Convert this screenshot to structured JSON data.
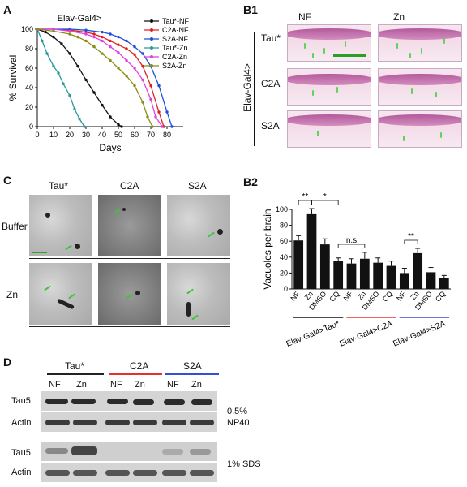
{
  "panelA": {
    "letter": "A",
    "title": "Elav-Gal4>",
    "legend": [
      {
        "label": "Tau*-NF",
        "color": "#111111",
        "marker": "square"
      },
      {
        "label": "C2A-NF",
        "color": "#e02020",
        "marker": "circle"
      },
      {
        "label": "S2A-NF",
        "color": "#1f4fd6",
        "marker": "triangle-up"
      },
      {
        "label": "Tau*-Zn",
        "color": "#2a9a9a",
        "marker": "triangle-down"
      },
      {
        "label": "C2A-Zn",
        "color": "#e040e0",
        "marker": "triangle-left"
      },
      {
        "label": "S2A-Zn",
        "color": "#8c8c1c",
        "marker": "triangle-right"
      }
    ]
  },
  "chart_data": [
    {
      "type": "line",
      "title": "Elav-Gal4>",
      "xlabel": "Days",
      "ylabel": "% Survival",
      "xlim": [
        0,
        90
      ],
      "ylim": [
        0,
        100
      ],
      "xticks": [
        "0",
        "10",
        "20",
        "30",
        "40",
        "50",
        "60",
        "70",
        "80"
      ],
      "yticks": [
        "0",
        "20",
        "40",
        "60",
        "80",
        "100"
      ],
      "series": [
        {
          "name": "Tau*-NF",
          "x": [
            0,
            5,
            10,
            15,
            20,
            25,
            30,
            35,
            40,
            45,
            50,
            52
          ],
          "y": [
            100,
            97,
            92,
            85,
            75,
            62,
            48,
            35,
            22,
            10,
            2,
            0
          ]
        },
        {
          "name": "C2A-NF",
          "x": [
            0,
            10,
            20,
            30,
            35,
            40,
            45,
            50,
            55,
            60,
            65,
            70,
            75,
            78
          ],
          "y": [
            100,
            100,
            99,
            97,
            95,
            92,
            88,
            84,
            80,
            74,
            62,
            42,
            15,
            0
          ]
        },
        {
          "name": "S2A-NF",
          "x": [
            0,
            10,
            20,
            30,
            40,
            45,
            50,
            55,
            60,
            65,
            70,
            75,
            80,
            83
          ],
          "y": [
            100,
            100,
            100,
            99,
            97,
            95,
            92,
            88,
            82,
            75,
            62,
            42,
            15,
            0
          ]
        },
        {
          "name": "Tau*-Zn",
          "x": [
            0,
            3,
            6,
            10,
            13,
            16,
            20,
            23,
            26,
            29
          ],
          "y": [
            100,
            88,
            75,
            62,
            55,
            44,
            32,
            18,
            8,
            0
          ]
        },
        {
          "name": "C2A-Zn",
          "x": [
            0,
            10,
            20,
            30,
            35,
            40,
            45,
            50,
            55,
            60,
            65,
            70,
            73,
            77
          ],
          "y": [
            100,
            100,
            98,
            95,
            92,
            88,
            82,
            76,
            68,
            60,
            48,
            28,
            10,
            0
          ]
        },
        {
          "name": "S2A-Zn",
          "x": [
            0,
            10,
            20,
            25,
            30,
            35,
            40,
            45,
            50,
            55,
            60,
            65,
            68,
            71
          ],
          "y": [
            100,
            98,
            95,
            92,
            88,
            82,
            75,
            68,
            60,
            52,
            42,
            25,
            10,
            0
          ]
        }
      ]
    },
    {
      "type": "bar",
      "title": "",
      "xlabel": "",
      "ylabel": "Vacuoles per brain",
      "ylim": [
        0,
        100
      ],
      "yticks": [
        "0",
        "20",
        "40",
        "60",
        "80",
        "100"
      ],
      "categories": [
        "NF",
        "Zn",
        "DMSO",
        "CQ",
        "NF",
        "Zn",
        "DMSO",
        "CQ",
        "NF",
        "Zn",
        "DMSO",
        "CQ"
      ],
      "values": [
        61,
        94,
        56,
        35,
        32,
        38,
        33,
        29,
        20,
        45,
        21,
        14
      ],
      "errors": [
        6,
        7,
        7,
        4,
        6,
        8,
        6,
        6,
        6,
        6,
        6,
        3
      ],
      "groups": [
        {
          "name": "Elav-Gal4>Tau*",
          "color": "#111111"
        },
        {
          "name": "Elav-Gal4>C2A",
          "color": "#e53030"
        },
        {
          "name": "Elav-Gal4>S2A",
          "color": "#3050d8"
        }
      ],
      "significance": [
        {
          "label": "**",
          "from": 0,
          "to": 1
        },
        {
          "label": "*",
          "from": 1,
          "to": 3
        },
        {
          "label": "n.s",
          "from": 3,
          "to": 5
        },
        {
          "label": "**",
          "from": 8,
          "to": 9
        }
      ]
    }
  ],
  "panelB1": {
    "letter": "B1",
    "cols": [
      "NF",
      "Zn"
    ],
    "rows": [
      "Tau*",
      "C2A",
      "S2A"
    ],
    "side_label": "Elav-Gal4>"
  },
  "panelB2": {
    "letter": "B2"
  },
  "panelC": {
    "letter": "C",
    "cols": [
      "Tau*",
      "C2A",
      "S2A"
    ],
    "rows": [
      "Buffer",
      "Zn"
    ]
  },
  "panelD": {
    "letter": "D",
    "groups": [
      {
        "label": "Tau*",
        "color": "#222222"
      },
      {
        "label": "C2A",
        "color": "#e53030"
      },
      {
        "label": "S2A",
        "color": "#3050d8"
      }
    ],
    "lanes": [
      "NF",
      "Zn",
      "NF",
      "Zn",
      "NF",
      "Zn"
    ],
    "blots": [
      "Tau5",
      "Actin",
      "Tau5",
      "Actin"
    ],
    "conditions": [
      "0.5%\nNP40",
      "1% SDS"
    ]
  }
}
